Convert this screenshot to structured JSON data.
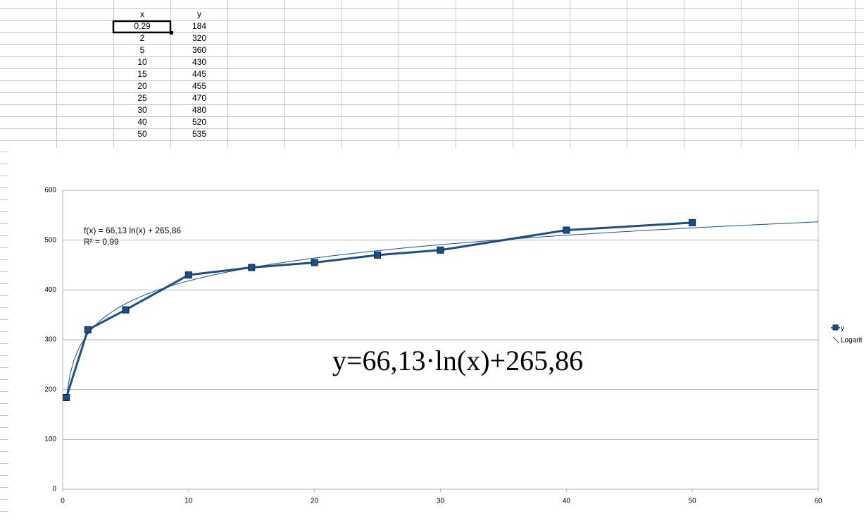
{
  "table": {
    "header": [
      "x",
      "y"
    ],
    "rows": [
      [
        "0,29",
        "184"
      ],
      [
        "2",
        "320"
      ],
      [
        "5",
        "360"
      ],
      [
        "10",
        "430"
      ],
      [
        "15",
        "445"
      ],
      [
        "20",
        "455"
      ],
      [
        "25",
        "470"
      ],
      [
        "30",
        "480"
      ],
      [
        "40",
        "520"
      ],
      [
        "50",
        "535"
      ]
    ]
  },
  "chart_data": {
    "type": "line",
    "x": [
      0.29,
      2,
      5,
      10,
      15,
      20,
      25,
      30,
      40,
      50
    ],
    "series": [
      {
        "name": "y",
        "color": "#1a4f8c",
        "values": [
          184,
          320,
          360,
          430,
          445,
          455,
          470,
          480,
          520,
          535
        ]
      }
    ],
    "trendline": {
      "label": "Logarit",
      "equation": "f(x) = 66,13 ln(x) + 265,86",
      "r2": "R² = 0,99",
      "a": 66.13,
      "b": 265.86,
      "color": "#1a4f8c"
    },
    "annotation": "y=66,13·ln(x)+265,86",
    "xlim": [
      0,
      60
    ],
    "xticks": [
      0,
      10,
      20,
      30,
      40,
      50,
      60
    ],
    "ylim": [
      0,
      600
    ],
    "yticks": [
      0,
      100,
      200,
      300,
      400,
      500,
      600
    ],
    "grid": true
  }
}
